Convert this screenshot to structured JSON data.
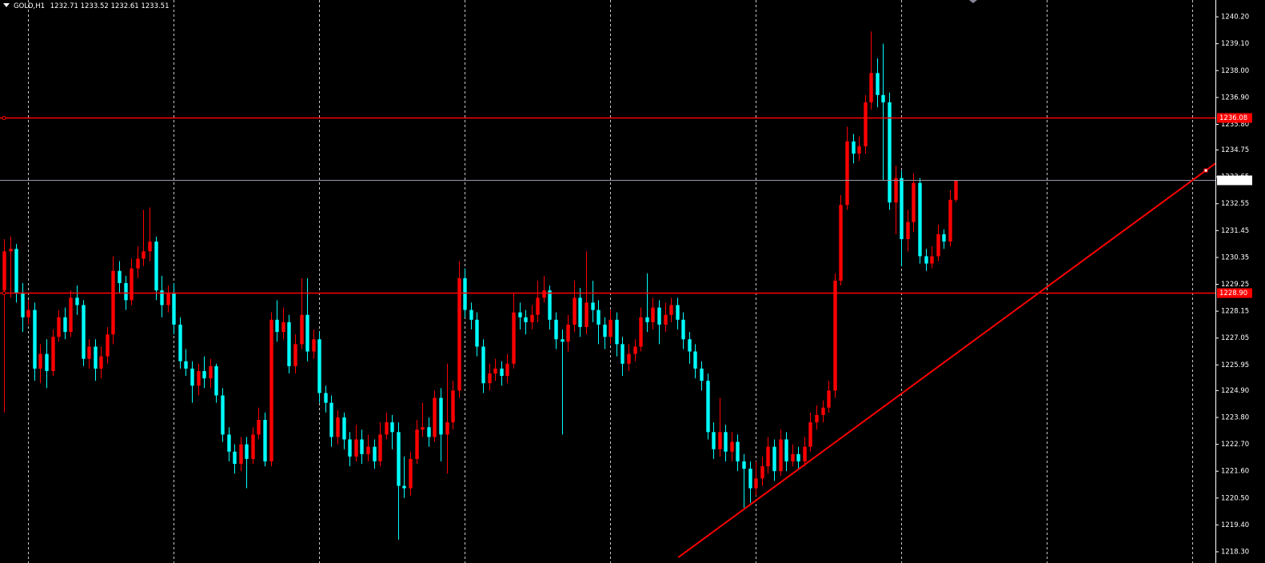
{
  "chart_data": {
    "type": "candlestick",
    "symbol": "GOLD,H1",
    "up_color": "#ff0000",
    "down_color": "#00ffff",
    "background": "#000000",
    "grid": true,
    "xlim": [
      -0.66,
      199.8
    ],
    "xticks": [
      4,
      28,
      52,
      76,
      100,
      124,
      148,
      172,
      196
    ],
    "ylim": [
      1218.07,
      1240.89
    ],
    "yticks": [
      {
        "value": 1240.2,
        "label": "1240.20"
      },
      {
        "value": 1239.1,
        "label": "1239.10"
      },
      {
        "value": 1238.0,
        "label": "1238.00"
      },
      {
        "value": 1236.9,
        "label": "1236.90"
      },
      {
        "value": 1235.8,
        "label": "1235.80"
      },
      {
        "value": 1234.75,
        "label": "1234.75"
      },
      {
        "value": 1233.65,
        "label": "1233.65"
      },
      {
        "value": 1232.55,
        "label": "1232.55"
      },
      {
        "value": 1231.45,
        "label": "1231.45"
      },
      {
        "value": 1230.35,
        "label": "1230.35"
      },
      {
        "value": 1229.25,
        "label": "1229.25"
      },
      {
        "value": 1228.15,
        "label": "1228.15"
      },
      {
        "value": 1227.05,
        "label": "1227.05"
      },
      {
        "value": 1225.95,
        "label": "1225.95"
      },
      {
        "value": 1224.9,
        "label": "1224.90"
      },
      {
        "value": 1223.8,
        "label": "1223.80"
      },
      {
        "value": 1222.7,
        "label": "1222.70"
      },
      {
        "value": 1221.6,
        "label": "1221.60"
      },
      {
        "value": 1220.5,
        "label": "1220.50"
      },
      {
        "value": 1219.4,
        "label": "1219.40"
      },
      {
        "value": 1218.3,
        "label": "1218.30"
      }
    ],
    "hlines": [
      {
        "value": 1236.08,
        "label": "1236.08",
        "color": "#ff0000"
      },
      {
        "value": 1228.9,
        "label": "1228.90",
        "color": "#ff0000"
      }
    ],
    "trendline": {
      "x": [
        111.2,
        199.8
      ],
      "y": [
        1218.07,
        1234.2
      ],
      "color": "#ff0000"
    },
    "open": [
      1229.0,
      1230.6,
      1230.7,
      1228.9,
      1227.9,
      1228.2,
      1225.8,
      1226.4,
      1225.7,
      1227.1,
      1227.9,
      1227.3,
      1228.7,
      1228.4,
      1226.2,
      1226.7,
      1225.8,
      1226.3,
      1227.2,
      1229.8,
      1229.3,
      1228.6,
      1229.9,
      1230.3,
      1230.6,
      1231.0,
      1229.0,
      1228.4,
      1228.9,
      1227.6,
      1226.1,
      1225.8,
      1225.1,
      1225.7,
      1225.4,
      1225.9,
      1224.7,
      1223.1,
      1222.4,
      1221.9,
      1222.7,
      1222.1,
      1223.1,
      1223.7,
      1222.0,
      1227.8,
      1227.3,
      1227.7,
      1225.9,
      1226.8,
      1228.0,
      1226.5,
      1227.0,
      1224.8,
      1224.4,
      1223.0,
      1223.8,
      1222.9,
      1222.2,
      1222.9,
      1222.3,
      1222.6,
      1222.0,
      1223.1,
      1223.6,
      1223.2,
      1221.0,
      1220.9,
      1222.1,
      1223.3,
      1223.4,
      1223.0,
      1224.6,
      1223.1,
      1223.6,
      1224.9,
      1229.5,
      1228.2,
      1227.8,
      1226.7,
      1225.2,
      1225.6,
      1225.8,
      1225.5,
      1226.0,
      1228.1,
      1227.9,
      1227.7,
      1228.0,
      1228.7,
      1229.0,
      1227.8,
      1227.0,
      1226.9,
      1227.6,
      1228.7,
      1227.5,
      1228.5,
      1228.2,
      1227.6,
      1227.1,
      1227.8,
      1226.8,
      1226.0,
      1226.4,
      1226.7,
      1227.9,
      1227.7,
      1228.3,
      1227.6,
      1228.0,
      1228.4,
      1227.8,
      1227.0,
      1226.5,
      1225.8,
      1225.3,
      1223.2,
      1222.5,
      1223.2,
      1222.4,
      1222.8,
      1222.0,
      1221.7,
      1220.9,
      1221.3,
      1221.8,
      1222.6,
      1221.6,
      1222.9,
      1222.0,
      1222.3,
      1222.0,
      1222.6,
      1223.6,
      1223.9,
      1224.2,
      1224.9,
      1229.4,
      1232.5,
      1235.1,
      1234.6,
      1234.9,
      1236.7,
      1237.9,
      1237.0,
      1236.7,
      1232.6,
      1233.6,
      1231.1,
      1231.8,
      1233.4,
      1230.4,
      1230.1,
      1230.4,
      1231.3,
      1231.0,
      1232.71
    ],
    "high": [
      1231.1,
      1231.2,
      1230.9,
      1229.3,
      1228.6,
      1228.5,
      1226.8,
      1227.0,
      1227.4,
      1228.2,
      1228.3,
      1229.0,
      1229.2,
      1228.6,
      1227.0,
      1227.0,
      1226.7,
      1227.5,
      1230.4,
      1230.2,
      1229.6,
      1230.3,
      1230.8,
      1232.3,
      1232.4,
      1231.2,
      1229.6,
      1229.2,
      1229.3,
      1227.9,
      1226.6,
      1226.1,
      1226.0,
      1226.3,
      1226.2,
      1226.0,
      1225.0,
      1223.4,
      1222.7,
      1223.0,
      1223.0,
      1223.4,
      1224.2,
      1224.0,
      1228.1,
      1228.6,
      1228.3,
      1228.0,
      1227.2,
      1229.5,
      1229.5,
      1227.4,
      1227.3,
      1225.1,
      1224.7,
      1224.1,
      1224.0,
      1223.2,
      1223.5,
      1223.3,
      1223.1,
      1222.9,
      1223.6,
      1224.0,
      1223.9,
      1223.6,
      1222.2,
      1222.4,
      1223.7,
      1224.4,
      1223.8,
      1224.9,
      1225.0,
      1226.0,
      1225.3,
      1230.2,
      1229.9,
      1228.5,
      1228.1,
      1227.0,
      1226.0,
      1226.2,
      1226.1,
      1226.4,
      1228.9,
      1228.5,
      1228.2,
      1228.4,
      1229.4,
      1229.6,
      1229.2,
      1228.1,
      1227.4,
      1228.0,
      1229.4,
      1229.1,
      1230.6,
      1229.4,
      1228.6,
      1227.9,
      1228.2,
      1228.1,
      1227.1,
      1226.8,
      1227.0,
      1228.3,
      1229.7,
      1228.7,
      1228.6,
      1228.5,
      1228.7,
      1228.7,
      1228.1,
      1227.3,
      1226.8,
      1226.1,
      1225.6,
      1223.6,
      1224.6,
      1223.5,
      1223.2,
      1223.1,
      1222.3,
      1222.0,
      1222.0,
      1222.2,
      1223.0,
      1222.9,
      1223.3,
      1223.2,
      1222.7,
      1222.6,
      1223.0,
      1224.0,
      1224.3,
      1224.5,
      1225.3,
      1229.7,
      1232.9,
      1235.7,
      1235.4,
      1235.3,
      1237.0,
      1239.6,
      1238.5,
      1239.1,
      1237.1,
      1234.1,
      1233.9,
      1232.3,
      1233.8,
      1233.6,
      1230.7,
      1230.8,
      1231.7,
      1231.5,
      1233.1,
      1233.52
    ],
    "low": [
      1224.0,
      1228.7,
      1228.5,
      1227.3,
      1227.6,
      1225.3,
      1225.2,
      1225.0,
      1225.5,
      1226.9,
      1227.0,
      1227.1,
      1228.0,
      1225.9,
      1225.8,
      1225.3,
      1225.4,
      1226.0,
      1226.8,
      1228.9,
      1228.2,
      1228.4,
      1229.5,
      1230.0,
      1230.2,
      1228.6,
      1227.9,
      1228.1,
      1227.2,
      1225.8,
      1225.5,
      1224.4,
      1224.7,
      1225.0,
      1225.0,
      1224.4,
      1222.8,
      1222.0,
      1221.5,
      1221.6,
      1220.9,
      1221.9,
      1222.9,
      1221.8,
      1221.8,
      1226.9,
      1227.0,
      1225.6,
      1225.6,
      1226.6,
      1226.1,
      1226.2,
      1224.4,
      1224.0,
      1222.6,
      1222.7,
      1222.5,
      1221.8,
      1222.0,
      1221.9,
      1222.0,
      1221.7,
      1221.8,
      1222.9,
      1222.5,
      1218.8,
      1220.5,
      1220.6,
      1221.9,
      1223.0,
      1222.6,
      1222.8,
      1222.0,
      1221.5,
      1223.3,
      1224.6,
      1227.9,
      1227.4,
      1226.3,
      1224.8,
      1224.9,
      1225.3,
      1225.1,
      1225.2,
      1225.8,
      1227.4,
      1227.2,
      1227.4,
      1227.7,
      1228.5,
      1227.4,
      1226.6,
      1223.1,
      1226.5,
      1227.3,
      1227.1,
      1227.2,
      1227.7,
      1226.8,
      1226.6,
      1226.8,
      1226.3,
      1225.5,
      1225.7,
      1226.1,
      1226.5,
      1227.3,
      1227.4,
      1226.8,
      1227.3,
      1227.7,
      1227.4,
      1226.6,
      1226.0,
      1225.4,
      1224.9,
      1222.9,
      1222.1,
      1222.2,
      1222.0,
      1222.0,
      1221.6,
      1220.1,
      1220.3,
      1220.6,
      1221.0,
      1221.5,
      1221.2,
      1221.4,
      1221.6,
      1221.8,
      1221.7,
      1221.8,
      1222.4,
      1223.3,
      1223.6,
      1224.0,
      1224.6,
      1229.2,
      1232.3,
      1234.2,
      1234.3,
      1234.6,
      1236.4,
      1236.5,
      1233.5,
      1232.3,
      1231.3,
      1230.0,
      1230.6,
      1231.4,
      1230.1,
      1229.8,
      1229.9,
      1230.2,
      1230.7,
      1230.8,
      1232.61
    ],
    "close": [
      1230.6,
      1230.7,
      1228.9,
      1227.9,
      1228.2,
      1225.8,
      1226.4,
      1225.7,
      1227.1,
      1227.9,
      1227.3,
      1228.7,
      1228.4,
      1226.2,
      1226.7,
      1225.8,
      1226.3,
      1227.2,
      1229.8,
      1229.3,
      1228.6,
      1229.9,
      1230.3,
      1230.6,
      1231.0,
      1229.0,
      1228.4,
      1228.9,
      1227.6,
      1226.1,
      1225.8,
      1225.1,
      1225.7,
      1225.4,
      1225.9,
      1224.7,
      1223.1,
      1222.4,
      1221.9,
      1222.7,
      1222.1,
      1223.1,
      1223.7,
      1222.0,
      1227.8,
      1227.3,
      1227.7,
      1225.9,
      1226.8,
      1228.0,
      1226.5,
      1227.0,
      1224.8,
      1224.4,
      1223.0,
      1223.8,
      1222.9,
      1222.2,
      1222.9,
      1222.3,
      1222.6,
      1222.0,
      1223.1,
      1223.6,
      1223.2,
      1221.0,
      1220.9,
      1222.1,
      1223.3,
      1223.4,
      1223.0,
      1224.6,
      1223.1,
      1223.6,
      1224.9,
      1229.5,
      1228.2,
      1227.8,
      1226.7,
      1225.2,
      1225.6,
      1225.8,
      1225.5,
      1226.0,
      1228.1,
      1227.9,
      1227.7,
      1228.0,
      1228.7,
      1229.0,
      1227.8,
      1227.0,
      1226.9,
      1227.6,
      1228.7,
      1227.5,
      1228.5,
      1228.2,
      1227.6,
      1227.1,
      1227.8,
      1226.8,
      1226.0,
      1226.4,
      1226.7,
      1227.9,
      1227.7,
      1228.3,
      1227.6,
      1228.0,
      1228.4,
      1227.8,
      1227.0,
      1226.5,
      1225.8,
      1225.3,
      1223.2,
      1222.5,
      1223.2,
      1222.4,
      1222.8,
      1222.0,
      1221.7,
      1220.9,
      1221.3,
      1221.8,
      1222.6,
      1221.6,
      1222.9,
      1222.0,
      1222.3,
      1222.0,
      1222.6,
      1223.6,
      1223.9,
      1224.2,
      1224.9,
      1229.4,
      1232.5,
      1235.1,
      1234.6,
      1234.9,
      1236.7,
      1237.9,
      1237.0,
      1236.7,
      1232.6,
      1233.6,
      1231.1,
      1231.8,
      1233.4,
      1230.4,
      1230.1,
      1230.4,
      1231.3,
      1231.0,
      1232.71,
      1233.51
    ]
  }
}
